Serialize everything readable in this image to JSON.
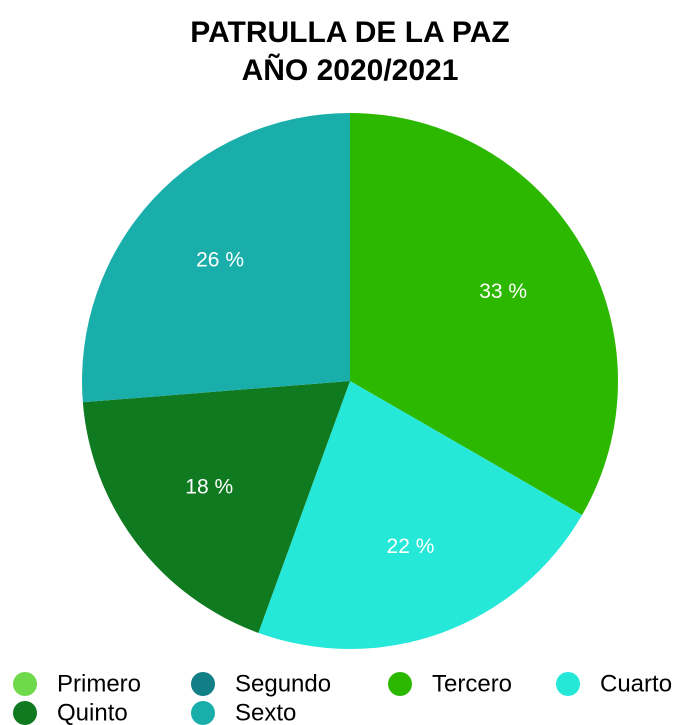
{
  "chart_data": {
    "type": "pie",
    "title": [
      "PATRULLA DE LA PAZ",
      "AÑO 2020/2021"
    ],
    "categories": [
      "Primero",
      "Segundo",
      "Tercero",
      "Cuarto",
      "Quinto",
      "Sexto"
    ],
    "values": [
      0,
      0,
      33,
      22,
      18,
      26
    ],
    "value_labels": [
      null,
      null,
      "33 %",
      "22 %",
      "18 %",
      "26 %"
    ],
    "colors": [
      "#6ed94a",
      "#127e86",
      "#2db800",
      "#26e8d8",
      "#0f7a1f",
      "#1aaeaa"
    ],
    "legend": "bottom"
  }
}
